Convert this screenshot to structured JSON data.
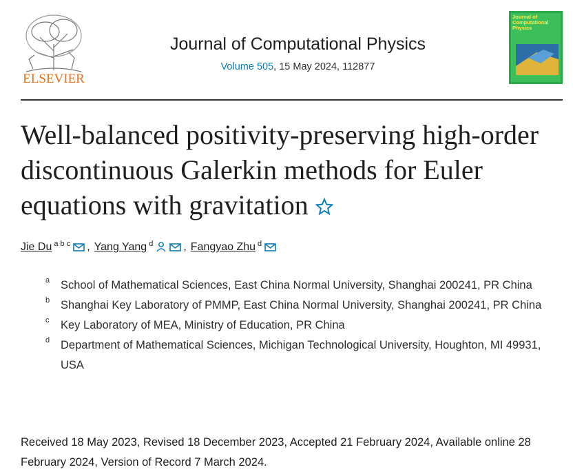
{
  "header": {
    "publisher": "ELSEVIER",
    "journal": "Journal of Computational Physics",
    "volume": "Volume 505",
    "citation": ", 15 May 2024, 112877",
    "cover_title": "Journal of Computational Physics"
  },
  "article": {
    "title": "Well-balanced positivity-preserving high-order discontinuous Galerkin methods for Euler equations with gravitation",
    "authors": [
      {
        "name": "Jie Du",
        "affiliations": "a b c",
        "separator": ","
      },
      {
        "name": "Yang Yang",
        "affiliations": "d",
        "separator": ","
      },
      {
        "name": "Fangyao Zhu",
        "affiliations": "d"
      }
    ],
    "affiliations": [
      {
        "label": "a",
        "text": "School of Mathematical Sciences, East China Normal University, Shanghai 200241, PR China"
      },
      {
        "label": "b",
        "text": "Shanghai Key Laboratory of PMMP, East China Normal University, Shanghai 200241, PR China"
      },
      {
        "label": "c",
        "text": "Key Laboratory of MEA, Ministry of Education, PR China"
      },
      {
        "label": "d",
        "text": "Department of Mathematical Sciences, Michigan Technological University, Houghton, MI 49931, USA"
      }
    ],
    "history": "Received 18 May 2023, Revised 18 December 2023, Accepted 21 February 2024, Available online 28 February 2024, Version of Record 7 March 2024."
  }
}
